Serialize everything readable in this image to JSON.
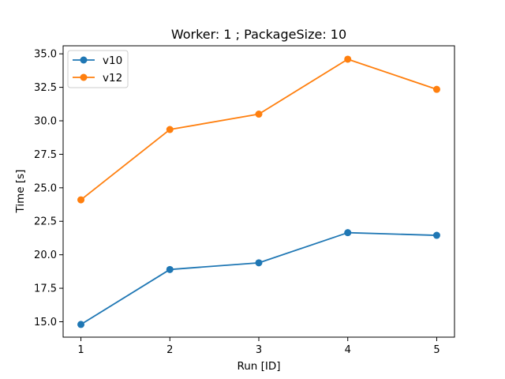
{
  "chart_data": {
    "type": "line",
    "title": "Worker: 1 ; PackageSize: 10",
    "xlabel": "Run [ID]",
    "ylabel": "Time [s]",
    "x": [
      1,
      2,
      3,
      4,
      5
    ],
    "xlim": [
      0.8,
      5.2
    ],
    "ylim": [
      13.85,
      35.6
    ],
    "xticks": [
      1,
      2,
      3,
      4,
      5
    ],
    "yticks": [
      15.0,
      17.5,
      20.0,
      22.5,
      25.0,
      27.5,
      30.0,
      32.5,
      35.0
    ],
    "ytick_labels": [
      "15.0",
      "17.5",
      "20.0",
      "22.5",
      "25.0",
      "27.5",
      "30.0",
      "32.5",
      "35.0"
    ],
    "grid": false,
    "legend_position": "top-left",
    "series": [
      {
        "name": "v10",
        "color": "#1f77b4",
        "marker": "circle",
        "values": [
          14.8,
          18.9,
          19.4,
          21.65,
          21.45
        ]
      },
      {
        "name": "v12",
        "color": "#ff7f0e",
        "marker": "circle",
        "values": [
          24.1,
          29.35,
          30.5,
          34.6,
          32.35
        ]
      }
    ]
  }
}
